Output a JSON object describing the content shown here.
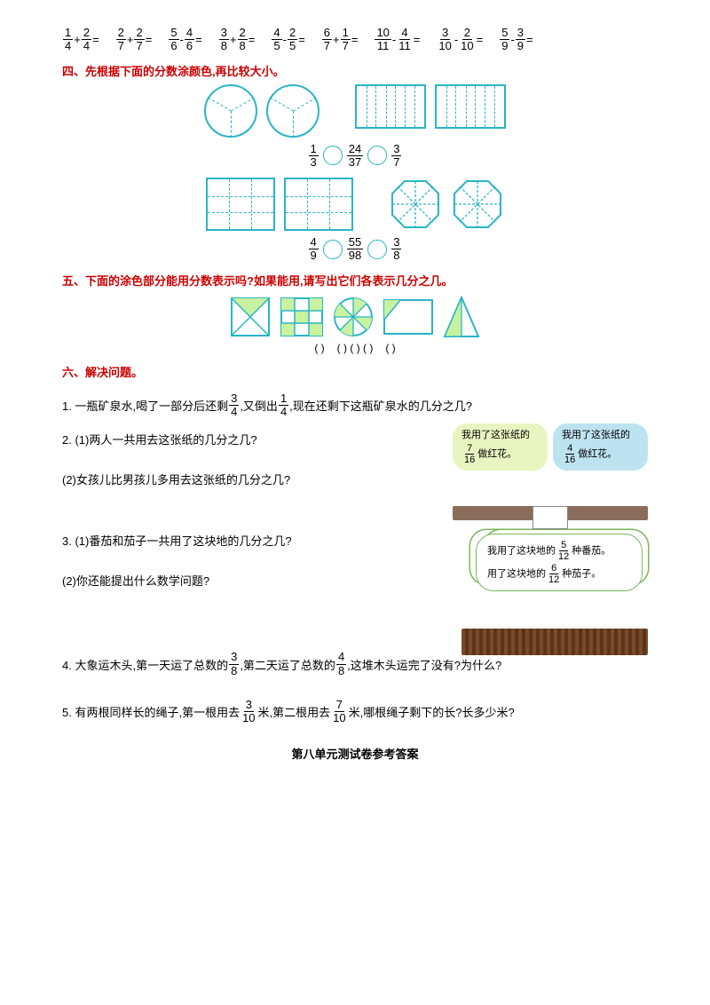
{
  "equations": [
    {
      "a": {
        "n": "1",
        "d": "4"
      },
      "op": "+",
      "b": {
        "n": "2",
        "d": "4"
      },
      "suffix": "=  "
    },
    {
      "a": {
        "n": "2",
        "d": "7"
      },
      "op": "+",
      "b": {
        "n": "2",
        "d": "7"
      },
      "suffix": "=  "
    },
    {
      "a": {
        "n": "5",
        "d": "6"
      },
      "op": "-",
      "b": {
        "n": "4",
        "d": "6"
      },
      "suffix": "="
    },
    {
      "a": {
        "n": "3",
        "d": "8"
      },
      "op": "+",
      "b": {
        "n": "2",
        "d": "8"
      },
      "suffix": "="
    },
    {
      "a": {
        "n": "4",
        "d": "5"
      },
      "op": "-",
      "b": {
        "n": "2",
        "d": "5"
      },
      "suffix": "="
    },
    {
      "a": {
        "n": "6",
        "d": "7"
      },
      "op": "+",
      "b": {
        "n": "1",
        "d": "7"
      },
      "suffix": "="
    },
    {
      "a": {
        "n": "10",
        "d": "11"
      },
      "op": "-",
      "b": {
        "n": "4",
        "d": "11"
      },
      "suffix": "="
    },
    {
      "a": {
        "n": "3",
        "d": "10"
      },
      "op": "-",
      "b": {
        "n": "2",
        "d": "10"
      },
      "suffix": "="
    },
    {
      "a": {
        "n": "5",
        "d": "9"
      },
      "op": "-",
      "b": {
        "n": "3",
        "d": "9"
      },
      "suffix": "=  "
    }
  ],
  "section4": {
    "title": "四、先根据下面的分数涂颜色,再比较大小。",
    "cmp1": {
      "a": {
        "n": "1",
        "d": "3"
      },
      "mid": {
        "n": "24",
        "d": "37"
      },
      "b": {
        "n": "3",
        "d": "7"
      }
    },
    "cmp2": {
      "a": {
        "n": "4",
        "d": "9"
      },
      "mid": {
        "n": "55",
        "d": "98"
      },
      "b": {
        "n": "3",
        "d": "8"
      }
    }
  },
  "section5": {
    "title": "五、下面的涂色部分能用分数表示吗?如果能用,请写出它们各表示几分之几。",
    "answers": [
      "(  )",
      "  (  )  (  )  (  )",
      "  (  )"
    ]
  },
  "section6": {
    "title": "六、解决问题。",
    "q1": {
      "pre": "1. 一瓶矿泉水,喝了一部分后还剩",
      "f1": {
        "n": "3",
        "d": "4"
      },
      "mid": ",又倒出",
      "f2": {
        "n": "1",
        "d": "4"
      },
      "post": ",现在还剩下这瓶矿泉水的几分之几?"
    },
    "q2": {
      "p1": "2. (1)两人一共用去这张纸的几分之几?",
      "p2": "(2)女孩儿比男孩儿多用去这张纸的几分之几?",
      "bub1_pre": "我用了这张纸的",
      "bub1_f": {
        "n": "7",
        "d": "16"
      },
      "bub1_post": "做红花。",
      "bub2_pre": "我用了这张纸的",
      "bub2_f": {
        "n": "4",
        "d": "16"
      },
      "bub2_post": "做红花。"
    },
    "q3": {
      "p1": "3. (1)番茄和茄子一共用了这块地的几分之几?",
      "p2": "(2)你还能提出什么数学问题?",
      "cloud1_pre": "我用了这块地的",
      "cloud1_f": {
        "n": "5",
        "d": "12"
      },
      "cloud1_post": "种番茄。",
      "cloud2_pre": "用了这块地的",
      "cloud2_f": {
        "n": "6",
        "d": "12"
      },
      "cloud2_post": "种茄子。"
    },
    "q4": {
      "pre": "4. 大象运木头,第一天运了总数的",
      "f1": {
        "n": "3",
        "d": "8"
      },
      "mid": ",第二天运了总数的",
      "f2": {
        "n": "4",
        "d": "8"
      },
      "post": ",这堆木头运完了没有?为什么?"
    },
    "q5": {
      "pre": "5. 有两根同样长的绳子,第一根用去",
      "f1": {
        "n": "3",
        "d": "10"
      },
      "mid": "米,第二根用去",
      "f2": {
        "n": "7",
        "d": "10"
      },
      "post": "米,哪根绳子剩下的长?长多少米?"
    }
  },
  "answer_title": "第八单元测试卷参考答案",
  "colors": {
    "shape": "#2ab5c6",
    "fill": "#c8f2a0"
  }
}
